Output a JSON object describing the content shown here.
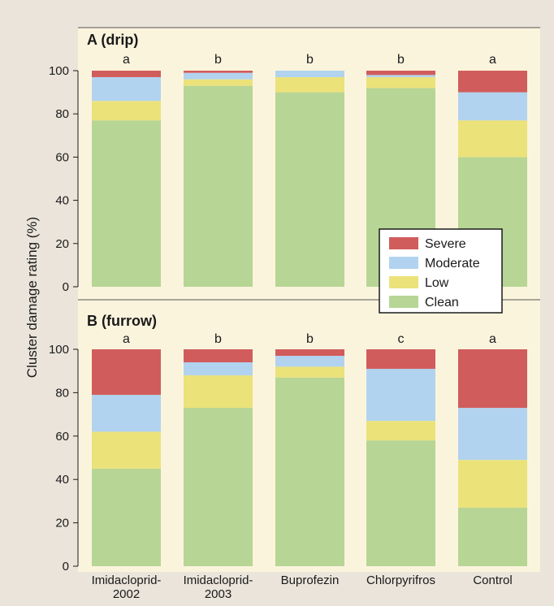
{
  "chart_data": [
    {
      "type": "bar",
      "stacked": true,
      "panel_title": "A (drip)",
      "categories": [
        "Imidacloprid-2002",
        "Imidacloprid-2003",
        "Buprofezin",
        "Chlorpyrifros",
        "Control"
      ],
      "significance_letters": [
        "a",
        "b",
        "b",
        "b",
        "a"
      ],
      "series": [
        {
          "name": "Clean",
          "values": [
            77,
            93,
            90,
            92,
            60
          ]
        },
        {
          "name": "Low",
          "values": [
            9,
            3,
            7,
            5,
            17
          ]
        },
        {
          "name": "Moderate",
          "values": [
            11,
            3,
            3,
            1,
            13
          ]
        },
        {
          "name": "Severe",
          "values": [
            3,
            1,
            0,
            2,
            10
          ]
        }
      ],
      "ylabel": "Cluster damage rating (%)",
      "ylim": [
        0,
        100
      ],
      "yticks": [
        0,
        20,
        40,
        60,
        80,
        100
      ],
      "legend_position": "lower-right"
    },
    {
      "type": "bar",
      "stacked": true,
      "panel_title": "B (furrow)",
      "categories": [
        "Imidacloprid-2002",
        "Imidacloprid-2003",
        "Buprofezin",
        "Chlorpyrifros",
        "Control"
      ],
      "significance_letters": [
        "a",
        "b",
        "b",
        "c",
        "a"
      ],
      "series": [
        {
          "name": "Clean",
          "values": [
            45,
            73,
            87,
            58,
            27
          ]
        },
        {
          "name": "Low",
          "values": [
            17,
            15,
            5,
            9,
            22
          ]
        },
        {
          "name": "Moderate",
          "values": [
            17,
            6,
            5,
            24,
            24
          ]
        },
        {
          "name": "Severe",
          "values": [
            21,
            6,
            3,
            9,
            27
          ]
        }
      ],
      "ylabel": "Cluster damage rating (%)",
      "ylim": [
        0,
        100
      ],
      "yticks": [
        0,
        20,
        40,
        60,
        80,
        100
      ]
    }
  ],
  "x_tick_labels": [
    [
      "Imidacloprid-",
      "2002"
    ],
    [
      "Imidacloprid-",
      "2003"
    ],
    [
      "Buprofezin"
    ],
    [
      "Chlorpyrifros"
    ],
    [
      "Control"
    ]
  ],
  "legend": [
    {
      "label": "Severe",
      "color": "#d15c5c"
    },
    {
      "label": "Moderate",
      "color": "#b2d3ef"
    },
    {
      "label": "Low",
      "color": "#ebe27a"
    },
    {
      "label": "Clean",
      "color": "#b7d594"
    }
  ],
  "colors": {
    "Clean": "#b7d594",
    "Low": "#ebe27a",
    "Moderate": "#b2d3ef",
    "Severe": "#d15c5c",
    "panel_background": "#fbf4dd",
    "page_background": "#eae4da"
  }
}
